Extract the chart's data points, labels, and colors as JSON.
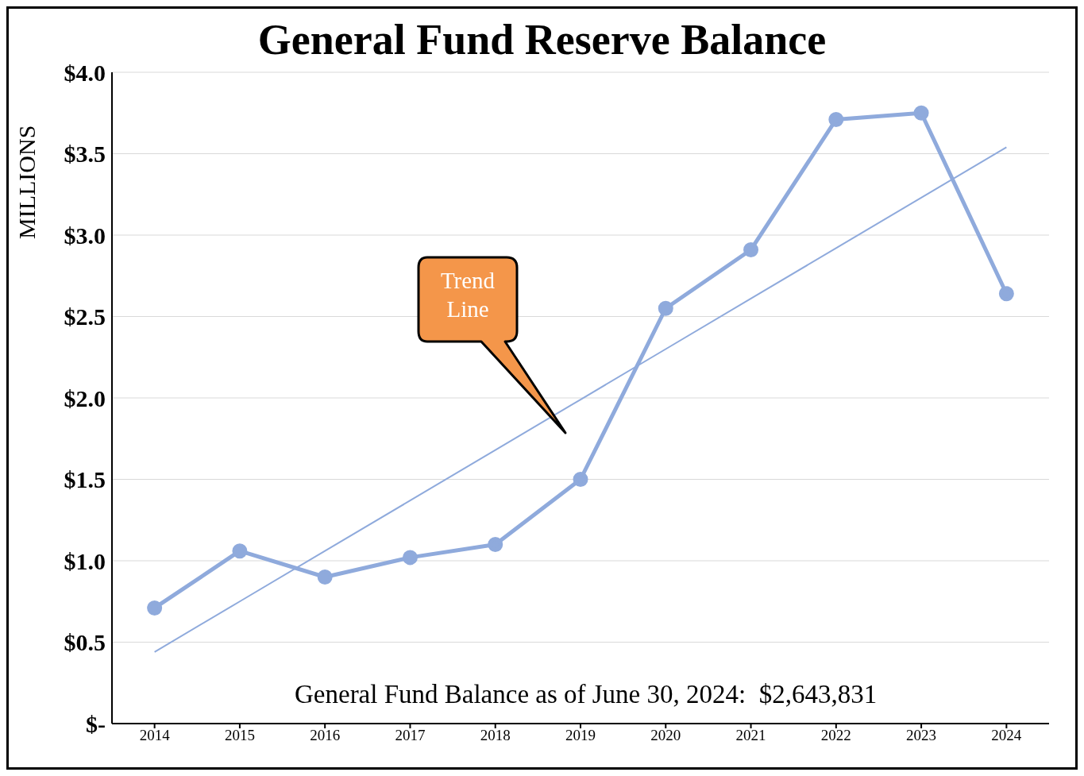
{
  "chart_data": {
    "type": "line",
    "title": "General Fund Reserve Balance",
    "ylabel": "MILLIONS",
    "categories": [
      "2014",
      "2015",
      "2016",
      "2017",
      "2018",
      "2019",
      "2020",
      "2021",
      "2022",
      "2023",
      "2024"
    ],
    "series": [
      {
        "color": "#8faadc",
        "values": [
          0.71,
          1.06,
          0.9,
          1.02,
          1.1,
          1.5,
          2.55,
          2.91,
          3.71,
          3.75,
          2.64
        ],
        "marker": "circle"
      },
      {
        "type": "line",
        "color": "#8faadc",
        "values": [
          0.44,
          0.75,
          1.06,
          1.37,
          1.68,
          1.99,
          2.3,
          2.61,
          2.92,
          3.23,
          3.54
        ],
        "marker": "none"
      }
    ],
    "ylim": [
      0,
      4
    ],
    "yticks": [
      {
        "value": 0,
        "label": "$-"
      },
      {
        "value": 0.5,
        "label": "$0.5"
      },
      {
        "value": 1,
        "label": "$1.0"
      },
      {
        "value": 1.5,
        "label": "$1.5"
      },
      {
        "value": 2,
        "label": "$2.0"
      },
      {
        "value": 2.5,
        "label": "$2.5"
      },
      {
        "value": 3,
        "label": "$3.0"
      },
      {
        "value": 3.5,
        "label": "$3.5"
      },
      {
        "value": 4,
        "label": "$4.0"
      }
    ],
    "grid": "y",
    "legend": false,
    "annotations": [
      "Trend Line",
      "General Fund Balance as of June 30, 2024:  $2,643,831"
    ]
  }
}
